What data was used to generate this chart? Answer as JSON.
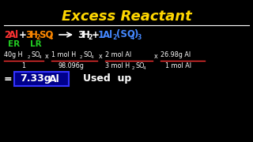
{
  "background_color": "#000000",
  "title": "Excess Reactant",
  "title_color": "#FFD700",
  "title_fontsize": 13,
  "white_color": "#FFFFFF",
  "al_color": "#FF3333",
  "h2so4_color": "#FF8800",
  "product_color": "#4488FF",
  "er_color": "#22CC22",
  "result": "7.33g",
  "result_label": "Al",
  "used_up": "Used  up",
  "box_edge_color": "#3333FF",
  "box_face_color": "#00008B"
}
